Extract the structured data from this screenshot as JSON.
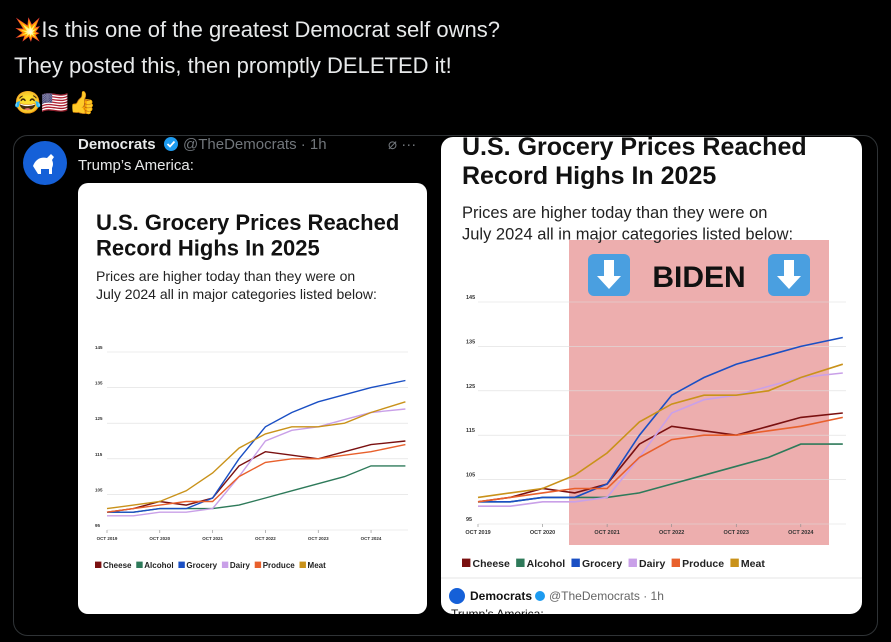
{
  "tweet": {
    "lines": [
      "💥Is this one of the greatest Democrat self owns?",
      "They posted this, then promptly DELETED it!"
    ],
    "emoji": "😂🇺🇸👍"
  },
  "quoted": {
    "name": "Democrats",
    "handle": "@TheDemocrats · 1h",
    "text": "Trump’s America:"
  },
  "chart": {
    "type": "line",
    "title_lines": [
      "U.S. Grocery Prices Reached",
      "Record Highs In 2025"
    ],
    "subtitle_lines": [
      "Prices are higher today than they were on",
      "July 2024 all in major categories listed below:"
    ],
    "x": [
      2019.75,
      2020.25,
      2020.75,
      2021.25,
      2021.75,
      2022.25,
      2022.75,
      2023.25,
      2023.75,
      2024.25,
      2024.75,
      2025.4
    ],
    "xlim": [
      2019.75,
      2025.45
    ],
    "xticks": [
      {
        "value": 2019.75,
        "label": "OCT 2019"
      },
      {
        "value": 2020.75,
        "label": "OCT 2020"
      },
      {
        "value": 2021.75,
        "label": "OCT 2021"
      },
      {
        "value": 2022.75,
        "label": "OCT 2022"
      },
      {
        "value": 2023.75,
        "label": "OCT 2023"
      },
      {
        "value": 2024.75,
        "label": "OCT 2024"
      }
    ],
    "ylim": [
      95,
      145
    ],
    "yticks": [
      95,
      105,
      115,
      125,
      135,
      145
    ],
    "grid": true,
    "series": [
      {
        "name": "Cheese",
        "color": "#7a1010",
        "values": [
          100,
          101,
          103,
          102,
          104,
          113,
          117,
          116,
          115,
          117,
          119,
          120
        ]
      },
      {
        "name": "Alcohol",
        "color": "#2e7a5a",
        "values": [
          100,
          100,
          101,
          101,
          101,
          102,
          104,
          106,
          108,
          110,
          113,
          113
        ]
      },
      {
        "name": "Grocery",
        "color": "#1a4fc4",
        "values": [
          100,
          100,
          101,
          101,
          104,
          115,
          124,
          128,
          131,
          133,
          135,
          137
        ]
      },
      {
        "name": "Dairy",
        "color": "#c9a0e8",
        "values": [
          99,
          99,
          100,
          100,
          101,
          110,
          120,
          123,
          124,
          126,
          128,
          129
        ]
      },
      {
        "name": "Produce",
        "color": "#e8602c",
        "values": [
          100,
          101,
          102,
          103,
          103,
          110,
          114,
          115,
          115,
          116,
          117,
          119
        ]
      },
      {
        "name": "Meat",
        "color": "#c9921a",
        "values": [
          101,
          102,
          103,
          106,
          111,
          118,
          122,
          124,
          124,
          125,
          128,
          131
        ]
      }
    ]
  },
  "second_image": {
    "banner": "BIDEN",
    "footer_name": "Democrats",
    "footer_handle": "@TheDemocrats · 1h",
    "footer_text": "Trump’s America:"
  }
}
